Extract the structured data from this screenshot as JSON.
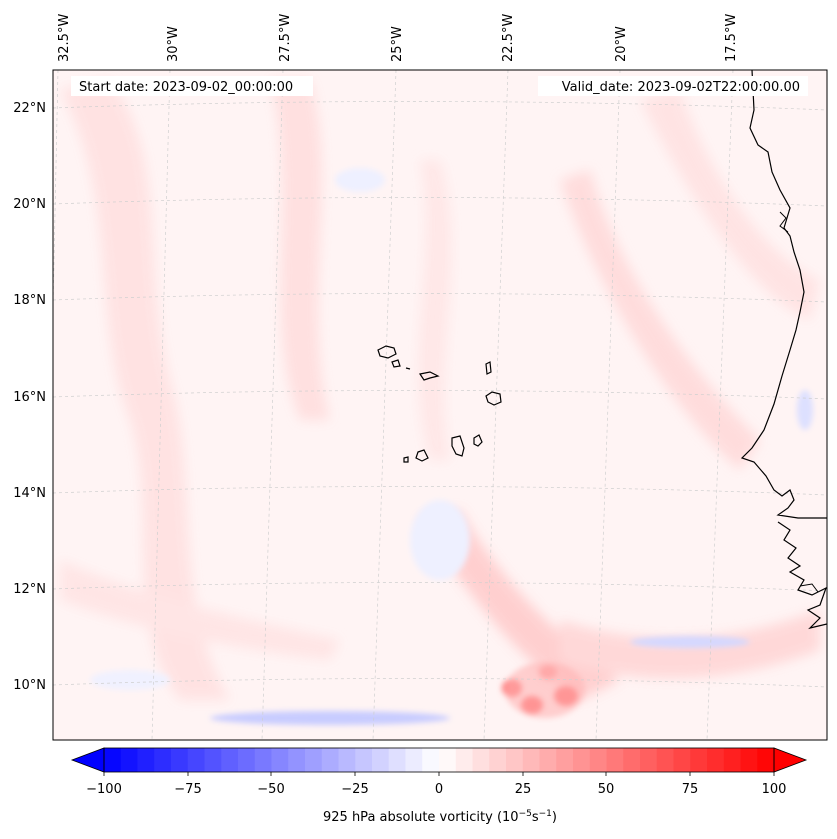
{
  "map": {
    "start_date": "Start date: 2023-09-02_00:00:00",
    "valid_date": "Valid_date: 2023-09-02T22:00:00.00",
    "lon_labels": [
      "32.5°W",
      "30°W",
      "27.5°W",
      "25°W",
      "22.5°W",
      "20°W",
      "17.5°W"
    ],
    "lat_labels": [
      "22°N",
      "20°N",
      "18°N",
      "16°N",
      "14°N",
      "12°N",
      "10°N"
    ],
    "background_color": "#fff4f4"
  },
  "colorbar": {
    "label": "925 hPa absolute vorticity (10",
    "label_exp1": "−5",
    "label_mid": "s",
    "label_exp2": "−1",
    "label_end": ")",
    "ticks": [
      "−100",
      "−75",
      "−50",
      "−25",
      "0",
      "25",
      "50",
      "75",
      "100"
    ],
    "min_color": "#0000ff",
    "zero_color": "#ffffff",
    "max_color": "#ff0000"
  }
}
